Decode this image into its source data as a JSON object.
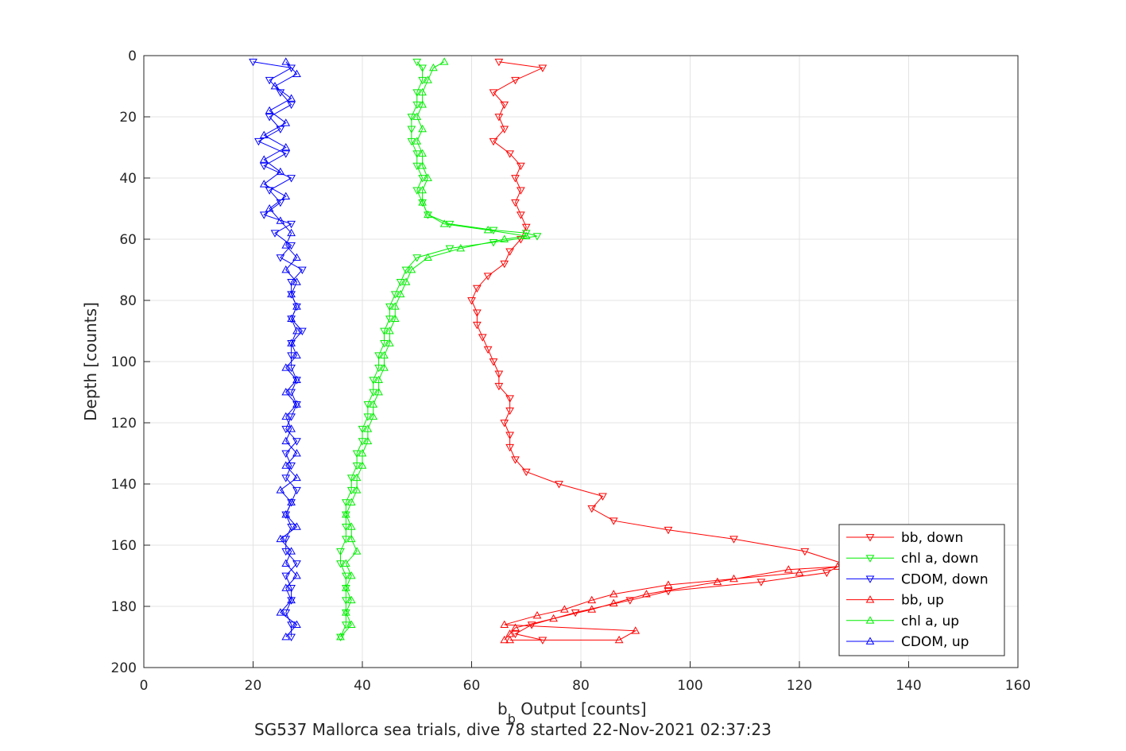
{
  "chart_data": {
    "type": "line",
    "xlabel": "b",
    "xlabel_subscript": "b",
    "xlabel_suffix": " Output [counts]",
    "ylabel": "Depth [counts]",
    "caption": "SG537 Mallorca sea trials, dive 78 started 22-Nov-2021 02:37:23",
    "xlim": [
      0,
      160
    ],
    "ylim": [
      0,
      200
    ],
    "y_reversed": true,
    "x_ticks": [
      "0",
      "20",
      "40",
      "60",
      "80",
      "100",
      "120",
      "140",
      "160"
    ],
    "y_ticks": [
      "0",
      "20",
      "40",
      "60",
      "80",
      "100",
      "120",
      "140",
      "160",
      "180",
      "200"
    ],
    "grid": true,
    "legend_position": "bottom-right",
    "series": [
      {
        "name": "bb, down",
        "color": "#ff0000",
        "marker": "triangle-down",
        "points": [
          [
            65,
            2
          ],
          [
            73,
            4
          ],
          [
            68,
            8
          ],
          [
            64,
            12
          ],
          [
            66,
            16
          ],
          [
            65,
            20
          ],
          [
            66,
            24
          ],
          [
            64,
            28
          ],
          [
            67,
            32
          ],
          [
            69,
            36
          ],
          [
            68,
            40
          ],
          [
            69,
            44
          ],
          [
            68,
            48
          ],
          [
            69,
            52
          ],
          [
            70,
            56
          ],
          [
            69,
            60
          ],
          [
            67,
            64
          ],
          [
            66,
            68
          ],
          [
            63,
            72
          ],
          [
            61,
            76
          ],
          [
            60,
            80
          ],
          [
            61,
            84
          ],
          [
            61,
            88
          ],
          [
            62,
            92
          ],
          [
            63,
            96
          ],
          [
            64,
            100
          ],
          [
            65,
            104
          ],
          [
            65,
            108
          ],
          [
            67,
            112
          ],
          [
            67,
            116
          ],
          [
            66,
            120
          ],
          [
            67,
            124
          ],
          [
            67,
            128
          ],
          [
            68,
            132
          ],
          [
            70,
            136
          ],
          [
            76,
            140
          ],
          [
            84,
            144
          ],
          [
            82,
            148
          ],
          [
            86,
            152
          ],
          [
            96,
            155
          ],
          [
            108,
            158
          ],
          [
            121,
            162
          ],
          [
            128,
            166
          ],
          [
            125,
            169
          ],
          [
            113,
            172
          ],
          [
            96,
            175
          ],
          [
            89,
            178
          ],
          [
            79,
            182
          ],
          [
            71,
            186
          ],
          [
            68,
            189
          ],
          [
            73,
            191
          ]
        ]
      },
      {
        "name": "chl a, down",
        "color": "#00ee00",
        "marker": "triangle-down",
        "points": [
          [
            50,
            2
          ],
          [
            51,
            4
          ],
          [
            51,
            8
          ],
          [
            50,
            12
          ],
          [
            50,
            16
          ],
          [
            49,
            20
          ],
          [
            49,
            24
          ],
          [
            49,
            28
          ],
          [
            50,
            32
          ],
          [
            50,
            36
          ],
          [
            51,
            40
          ],
          [
            50,
            44
          ],
          [
            51,
            48
          ],
          [
            52,
            52
          ],
          [
            56,
            55
          ],
          [
            64,
            57
          ],
          [
            70,
            58
          ],
          [
            72,
            59
          ],
          [
            64,
            61
          ],
          [
            56,
            63
          ],
          [
            50,
            66
          ],
          [
            48,
            70
          ],
          [
            47,
            74
          ],
          [
            46,
            78
          ],
          [
            45,
            82
          ],
          [
            45,
            86
          ],
          [
            44,
            90
          ],
          [
            44,
            94
          ],
          [
            43,
            98
          ],
          [
            43,
            102
          ],
          [
            42,
            106
          ],
          [
            42,
            110
          ],
          [
            41,
            114
          ],
          [
            41,
            118
          ],
          [
            40,
            122
          ],
          [
            40,
            126
          ],
          [
            39,
            130
          ],
          [
            39,
            134
          ],
          [
            38,
            138
          ],
          [
            38,
            142
          ],
          [
            37,
            146
          ],
          [
            37,
            150
          ],
          [
            37,
            154
          ],
          [
            37,
            158
          ],
          [
            36,
            162
          ],
          [
            36,
            166
          ],
          [
            37,
            170
          ],
          [
            37,
            174
          ],
          [
            37,
            178
          ],
          [
            37,
            182
          ],
          [
            37,
            186
          ],
          [
            36,
            190
          ]
        ]
      },
      {
        "name": "CDOM, down",
        "color": "#0000ff",
        "marker": "triangle-down",
        "points": [
          [
            20,
            2
          ],
          [
            27,
            4
          ],
          [
            23,
            8
          ],
          [
            25,
            12
          ],
          [
            27,
            16
          ],
          [
            23,
            20
          ],
          [
            25,
            24
          ],
          [
            21,
            28
          ],
          [
            26,
            32
          ],
          [
            22,
            36
          ],
          [
            27,
            40
          ],
          [
            23,
            44
          ],
          [
            25,
            48
          ],
          [
            22,
            52
          ],
          [
            27,
            55
          ],
          [
            24,
            58
          ],
          [
            27,
            62
          ],
          [
            25,
            66
          ],
          [
            29,
            70
          ],
          [
            27,
            74
          ],
          [
            27,
            78
          ],
          [
            28,
            82
          ],
          [
            27,
            86
          ],
          [
            29,
            90
          ],
          [
            27,
            94
          ],
          [
            27,
            98
          ],
          [
            27,
            102
          ],
          [
            28,
            106
          ],
          [
            27,
            110
          ],
          [
            28,
            114
          ],
          [
            27,
            118
          ],
          [
            26,
            122
          ],
          [
            28,
            126
          ],
          [
            26,
            130
          ],
          [
            27,
            134
          ],
          [
            26,
            138
          ],
          [
            28,
            142
          ],
          [
            27,
            146
          ],
          [
            26,
            150
          ],
          [
            27,
            154
          ],
          [
            26,
            158
          ],
          [
            26,
            162
          ],
          [
            28,
            166
          ],
          [
            26,
            170
          ],
          [
            27,
            174
          ],
          [
            27,
            178
          ],
          [
            26,
            182
          ],
          [
            27,
            186
          ],
          [
            27,
            190
          ]
        ]
      },
      {
        "name": "bb, up",
        "color": "#ff0000",
        "marker": "triangle-up",
        "points": [
          [
            67,
            191
          ],
          [
            87,
            191
          ],
          [
            90,
            188
          ],
          [
            66,
            186
          ],
          [
            72,
            183
          ],
          [
            77,
            181
          ],
          [
            82,
            178
          ],
          [
            86,
            176
          ],
          [
            96,
            173
          ],
          [
            108,
            171
          ],
          [
            120,
            169
          ],
          [
            127,
            167
          ],
          [
            118,
            168
          ],
          [
            105,
            172
          ],
          [
            92,
            176
          ],
          [
            86,
            179
          ],
          [
            82,
            181
          ],
          [
            75,
            184
          ],
          [
            68,
            187
          ],
          [
            67,
            189
          ],
          [
            66,
            191
          ]
        ]
      },
      {
        "name": "chl a, up",
        "color": "#00ee00",
        "marker": "triangle-up",
        "points": [
          [
            36,
            190
          ],
          [
            38,
            186
          ],
          [
            37,
            182
          ],
          [
            38,
            178
          ],
          [
            37,
            174
          ],
          [
            38,
            170
          ],
          [
            37,
            166
          ],
          [
            39,
            162
          ],
          [
            38,
            158
          ],
          [
            38,
            154
          ],
          [
            37,
            150
          ],
          [
            38,
            146
          ],
          [
            39,
            142
          ],
          [
            39,
            138
          ],
          [
            40,
            134
          ],
          [
            40,
            130
          ],
          [
            41,
            126
          ],
          [
            41,
            122
          ],
          [
            42,
            118
          ],
          [
            42,
            114
          ],
          [
            43,
            110
          ],
          [
            43,
            106
          ],
          [
            44,
            102
          ],
          [
            44,
            98
          ],
          [
            45,
            94
          ],
          [
            45,
            90
          ],
          [
            46,
            86
          ],
          [
            46,
            82
          ],
          [
            47,
            78
          ],
          [
            48,
            74
          ],
          [
            49,
            70
          ],
          [
            52,
            66
          ],
          [
            58,
            63
          ],
          [
            66,
            60
          ],
          [
            70,
            59
          ],
          [
            63,
            57
          ],
          [
            55,
            55
          ],
          [
            52,
            52
          ],
          [
            51,
            48
          ],
          [
            51,
            44
          ],
          [
            52,
            40
          ],
          [
            51,
            36
          ],
          [
            51,
            32
          ],
          [
            50,
            28
          ],
          [
            51,
            24
          ],
          [
            50,
            20
          ],
          [
            51,
            16
          ],
          [
            51,
            12
          ],
          [
            52,
            8
          ],
          [
            53,
            4
          ],
          [
            55,
            2
          ]
        ]
      },
      {
        "name": "CDOM, up",
        "color": "#0000ff",
        "marker": "triangle-up",
        "points": [
          [
            26,
            190
          ],
          [
            28,
            186
          ],
          [
            25,
            182
          ],
          [
            27,
            178
          ],
          [
            26,
            174
          ],
          [
            28,
            170
          ],
          [
            26,
            166
          ],
          [
            27,
            162
          ],
          [
            25,
            158
          ],
          [
            28,
            154
          ],
          [
            26,
            150
          ],
          [
            27,
            146
          ],
          [
            25,
            142
          ],
          [
            28,
            138
          ],
          [
            26,
            134
          ],
          [
            28,
            130
          ],
          [
            26,
            126
          ],
          [
            27,
            122
          ],
          [
            26,
            118
          ],
          [
            28,
            114
          ],
          [
            26,
            110
          ],
          [
            28,
            106
          ],
          [
            26,
            102
          ],
          [
            28,
            98
          ],
          [
            27,
            94
          ],
          [
            28,
            90
          ],
          [
            27,
            86
          ],
          [
            28,
            82
          ],
          [
            27,
            78
          ],
          [
            28,
            74
          ],
          [
            26,
            70
          ],
          [
            28,
            66
          ],
          [
            26,
            62
          ],
          [
            27,
            58
          ],
          [
            25,
            54
          ],
          [
            23,
            50
          ],
          [
            26,
            46
          ],
          [
            22,
            42
          ],
          [
            25,
            38
          ],
          [
            22,
            34
          ],
          [
            26,
            30
          ],
          [
            22,
            26
          ],
          [
            26,
            22
          ],
          [
            23,
            18
          ],
          [
            27,
            14
          ],
          [
            24,
            10
          ],
          [
            28,
            6
          ],
          [
            26,
            2
          ]
        ]
      }
    ]
  }
}
